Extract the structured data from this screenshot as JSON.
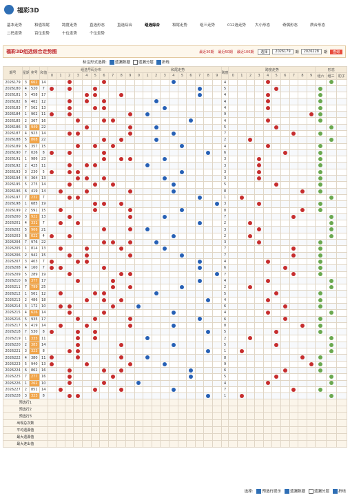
{
  "header": {
    "logo": "福彩3D"
  },
  "nav": [
    "基本走势",
    "和值和尾",
    "跨度走势",
    "直选形态",
    "直选综合",
    "组选综合",
    "和尾走势",
    "组三走势",
    "012选走势",
    "大小形态",
    "奇偶形态",
    "质合形态",
    "二码走势",
    "百位走势",
    "十位走势",
    "个位走势"
  ],
  "active_nav": 5,
  "title": "福彩3D组选综合走势图",
  "range_links": [
    "最近30期",
    "最近50期",
    "最近100期"
  ],
  "select_label": "选择",
  "from_period": 2026179,
  "to_period": 2026228,
  "period_unit": "期",
  "query": "查询",
  "options_label": "标注形式选择:",
  "options": [
    {
      "label": "遗漏数据",
      "checked": true
    },
    {
      "label": "遗漏分层",
      "checked": false
    },
    {
      "label": "折线",
      "checked": true
    }
  ],
  "table": {
    "headers": [
      "期号",
      "星期",
      "奖号",
      "和值",
      "组选号码分布",
      "和尾走势",
      "跨度",
      "跨度走势",
      "形态"
    ],
    "digits": [
      0,
      1,
      2,
      3,
      4,
      5,
      6,
      7,
      8,
      9
    ],
    "shapes": [
      "组六",
      "组三",
      "豹子"
    ],
    "rows": [
      [
        2026179,
        3,
        "662",
        14,
        4
      ],
      [
        2026180,
        4,
        "520",
        7,
        5
      ],
      [
        2026181,
        5,
        "458",
        17,
        4
      ],
      [
        2026182,
        6,
        "462",
        12,
        4
      ],
      [
        2026183,
        7,
        "562",
        13,
        4
      ],
      [
        2026184,
        1,
        "902",
        11,
        9
      ],
      [
        2026185,
        2,
        "367",
        16,
        4
      ],
      [
        2026186,
        3,
        "949",
        22,
        5
      ],
      [
        2026187,
        4,
        "923",
        14,
        7
      ],
      [
        2026188,
        5,
        "868",
        22,
        2
      ],
      [
        2026189,
        6,
        "357",
        15,
        4
      ],
      [
        2026190,
        7,
        "026",
        8,
        6
      ],
      [
        2026191,
        1,
        "986",
        23,
        3
      ],
      [
        2026192,
        2,
        "425",
        11,
        3
      ],
      [
        2026193,
        3,
        "230",
        5,
        3
      ],
      [
        2026194,
        4,
        "364",
        13,
        3
      ],
      [
        2026195,
        5,
        "275",
        14,
        5
      ],
      [
        2026196,
        6,
        "419",
        14,
        8
      ],
      [
        2026197,
        7,
        "232",
        7,
        1
      ],
      [
        2026198,
        1,
        "685",
        19,
        3
      ],
      [
        2026199,
        2,
        "591",
        15,
        8
      ],
      [
        2026200,
        3,
        "922",
        13,
        7
      ],
      [
        2026201,
        4,
        "331",
        7,
        2
      ],
      [
        2026202,
        5,
        "966",
        21,
        3
      ],
      [
        2026203,
        6,
        "022",
        4,
        2
      ],
      [
        2026204,
        7,
        "976",
        22,
        3
      ],
      [
        2026205,
        1,
        "814",
        13,
        7
      ],
      [
        2026206,
        2,
        "942",
        15,
        7
      ],
      [
        2026207,
        3,
        "403",
        7,
        4
      ],
      [
        2026208,
        4,
        "160",
        7,
        6
      ],
      [
        2026209,
        5,
        "289",
        19,
        7
      ],
      [
        2026210,
        6,
        "377",
        17,
        4
      ],
      [
        2026211,
        7,
        "799",
        25,
        2
      ],
      [
        2026212,
        1,
        "561",
        12,
        5
      ],
      [
        2026213,
        2,
        "486",
        18,
        4
      ],
      [
        2026214,
        3,
        "172",
        10,
        6
      ],
      [
        2026215,
        4,
        "626",
        14,
        4
      ],
      [
        2026216,
        5,
        "935",
        17,
        6
      ],
      [
        2026217,
        6,
        "419",
        14,
        8
      ],
      [
        2026218,
        7,
        "530",
        8,
        5
      ],
      [
        2026219,
        1,
        "335",
        11,
        2
      ],
      [
        2026220,
        2,
        "383",
        14,
        5
      ],
      [
        2026221,
        3,
        "323",
        8,
        1
      ],
      [
        2026222,
        4,
        "380",
        11,
        8
      ],
      [
        2026223,
        5,
        "940",
        13,
        9
      ],
      [
        2026224,
        6,
        "862",
        16,
        6
      ],
      [
        2026225,
        7,
        "277",
        16,
        5
      ],
      [
        2026226,
        1,
        "262",
        10,
        4
      ],
      [
        2026227,
        2,
        "851",
        14,
        7
      ],
      [
        2026228,
        3,
        "323",
        8,
        1
      ]
    ],
    "preselect": [
      "预选行1",
      "预选行2",
      "预选行3"
    ],
    "stats": [
      "出现总次数",
      "平均遗漏值",
      "最大遗漏值",
      "最大连出值"
    ]
  },
  "footer": {
    "label": "选择:",
    "options": [
      {
        "label": "预选行提示",
        "checked": true
      },
      {
        "label": "遗漏数据",
        "checked": true
      },
      {
        "label": "遗漏分层",
        "checked": false
      },
      {
        "label": "折线",
        "checked": true
      }
    ]
  }
}
